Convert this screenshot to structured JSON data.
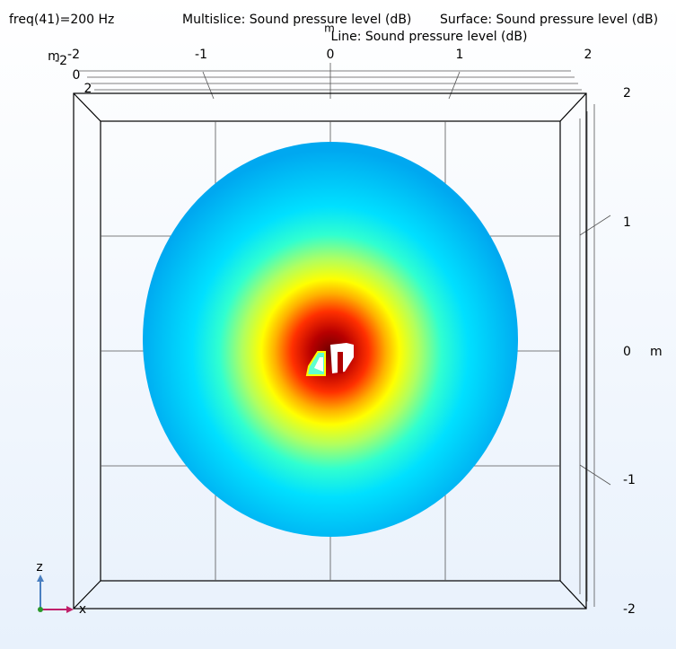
{
  "header": {
    "parameter": "freq(41)=200 Hz",
    "titles": [
      "Multislice: Sound pressure level (dB)",
      "Surface: Sound pressure level (dB)",
      "Line: Sound pressure level (dB)"
    ]
  },
  "top_axis": {
    "unit": "m",
    "ticks": [
      "-2",
      "-1",
      "0",
      "1",
      "2"
    ]
  },
  "depth_axis": {
    "unit": "m",
    "ticks": [
      "-2",
      "0",
      "2"
    ]
  },
  "right_axis": {
    "unit": "m",
    "ticks": [
      "2",
      "1",
      "0",
      "-1",
      "-2"
    ]
  },
  "triad": {
    "vertical": "z",
    "horizontal": "x"
  }
}
